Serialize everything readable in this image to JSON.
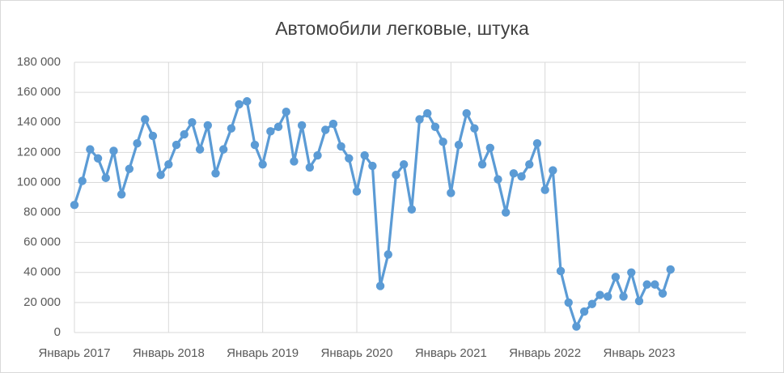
{
  "chart_data": {
    "type": "line",
    "title": "Автомобили легковые, штука",
    "categories": [
      "Январь 2017",
      null,
      null,
      null,
      null,
      null,
      null,
      null,
      null,
      null,
      null,
      null,
      "Январь 2018",
      null,
      null,
      null,
      null,
      null,
      null,
      null,
      null,
      null,
      null,
      null,
      "Январь 2019",
      null,
      null,
      null,
      null,
      null,
      null,
      null,
      null,
      null,
      null,
      null,
      "Январь 2020",
      null,
      null,
      null,
      null,
      null,
      null,
      null,
      null,
      null,
      null,
      null,
      "Январь 2021",
      null,
      null,
      null,
      null,
      null,
      null,
      null,
      null,
      null,
      null,
      null,
      "Январь 2022",
      null,
      null,
      null,
      null,
      null,
      null,
      null,
      null,
      null,
      null,
      null,
      "Январь 2023",
      null,
      null,
      null,
      null
    ],
    "values": [
      85000,
      101000,
      122000,
      116000,
      103000,
      121000,
      92000,
      109000,
      126000,
      142000,
      131000,
      105000,
      112000,
      125000,
      132000,
      140000,
      122000,
      138000,
      106000,
      122000,
      136000,
      152000,
      154000,
      125000,
      112000,
      134000,
      137000,
      147000,
      114000,
      138000,
      110000,
      118000,
      135000,
      139000,
      124000,
      116000,
      94000,
      118000,
      111000,
      31000,
      52000,
      105000,
      112000,
      82000,
      142000,
      146000,
      137000,
      127000,
      93000,
      125000,
      146000,
      136000,
      112000,
      123000,
      102000,
      80000,
      106000,
      104000,
      112000,
      126000,
      95000,
      108000,
      41000,
      20000,
      4000,
      14000,
      19000,
      25000,
      24000,
      37000,
      24000,
      40000,
      21000,
      32000,
      32000,
      26000,
      42000
    ],
    "color": "#5b9bd5",
    "ylim": [
      0,
      180000
    ],
    "yticks": [
      0,
      {
        "value": 20000,
        "label": "20 000"
      },
      {
        "value": 40000,
        "label": "40 000"
      },
      {
        "value": 60000,
        "label": "60 000"
      },
      {
        "value": 80000,
        "label": "80 000"
      },
      {
        "value": 100000,
        "label": "100 000"
      },
      {
        "value": 120000,
        "label": "120 000"
      },
      {
        "value": 140000,
        "label": "140 000"
      },
      {
        "value": 160000,
        "label": "160 000"
      },
      {
        "value": 180000,
        "label": "180 000"
      }
    ],
    "grid": true
  }
}
